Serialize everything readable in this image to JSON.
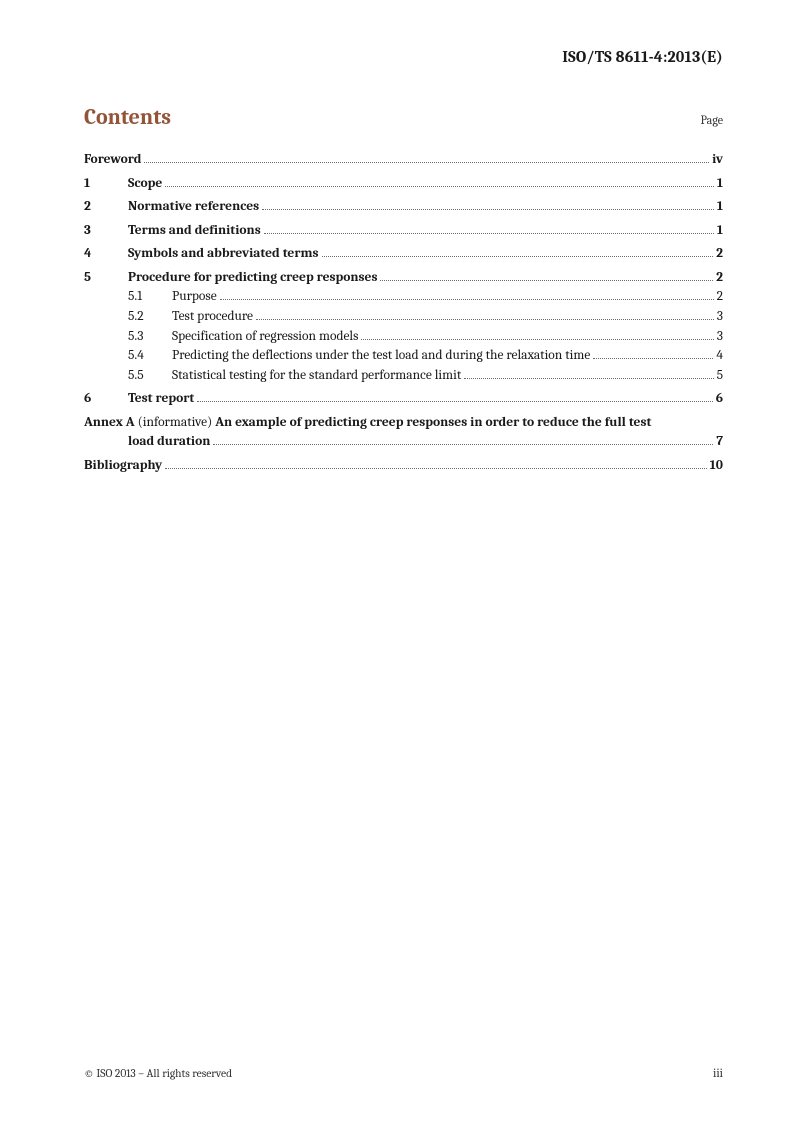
{
  "header": {
    "doc_id": "ISO/TS 8611-4:2013(E)"
  },
  "contents": {
    "title": "Contents",
    "page_label": "Page"
  },
  "toc": {
    "foreword": {
      "title": "Foreword",
      "page": "iv"
    },
    "s1": {
      "num": "1",
      "title": "Scope",
      "page": "1"
    },
    "s2": {
      "num": "2",
      "title": "Normative references",
      "page": "1"
    },
    "s3": {
      "num": "3",
      "title": "Terms and definitions",
      "page": "1"
    },
    "s4": {
      "num": "4",
      "title": "Symbols and abbreviated terms",
      "page": "2"
    },
    "s5": {
      "num": "5",
      "title": "Procedure for predicting creep responses",
      "page": "2"
    },
    "s5_1": {
      "num": "5.1",
      "title": "Purpose",
      "page": "2"
    },
    "s5_2": {
      "num": "5.2",
      "title": "Test procedure",
      "page": "3"
    },
    "s5_3": {
      "num": "5.3",
      "title": "Specification of regression models",
      "page": "3"
    },
    "s5_4": {
      "num": "5.4",
      "title": "Predicting the deflections under the test load and during the relaxation time",
      "page": "4"
    },
    "s5_5": {
      "num": "5.5",
      "title": "Statistical testing for the standard performance limit",
      "page": "5"
    },
    "s6": {
      "num": "6",
      "title": "Test report",
      "page": "6"
    },
    "annex": {
      "label": "Annex A",
      "paren": "(informative)",
      "title_part1": "An example of predicting creep responses in order to reduce the full test",
      "title_part2": "load duration",
      "page": "7"
    },
    "biblio": {
      "title": "Bibliography",
      "page": "10"
    }
  },
  "footer": {
    "copyright": "© ISO 2013 – All rights reserved",
    "pageno": "iii"
  },
  "colors": {
    "heading": "#935437",
    "text": "#1a1a1a",
    "leader": "#6b6b6b",
    "background": "#ffffff"
  }
}
